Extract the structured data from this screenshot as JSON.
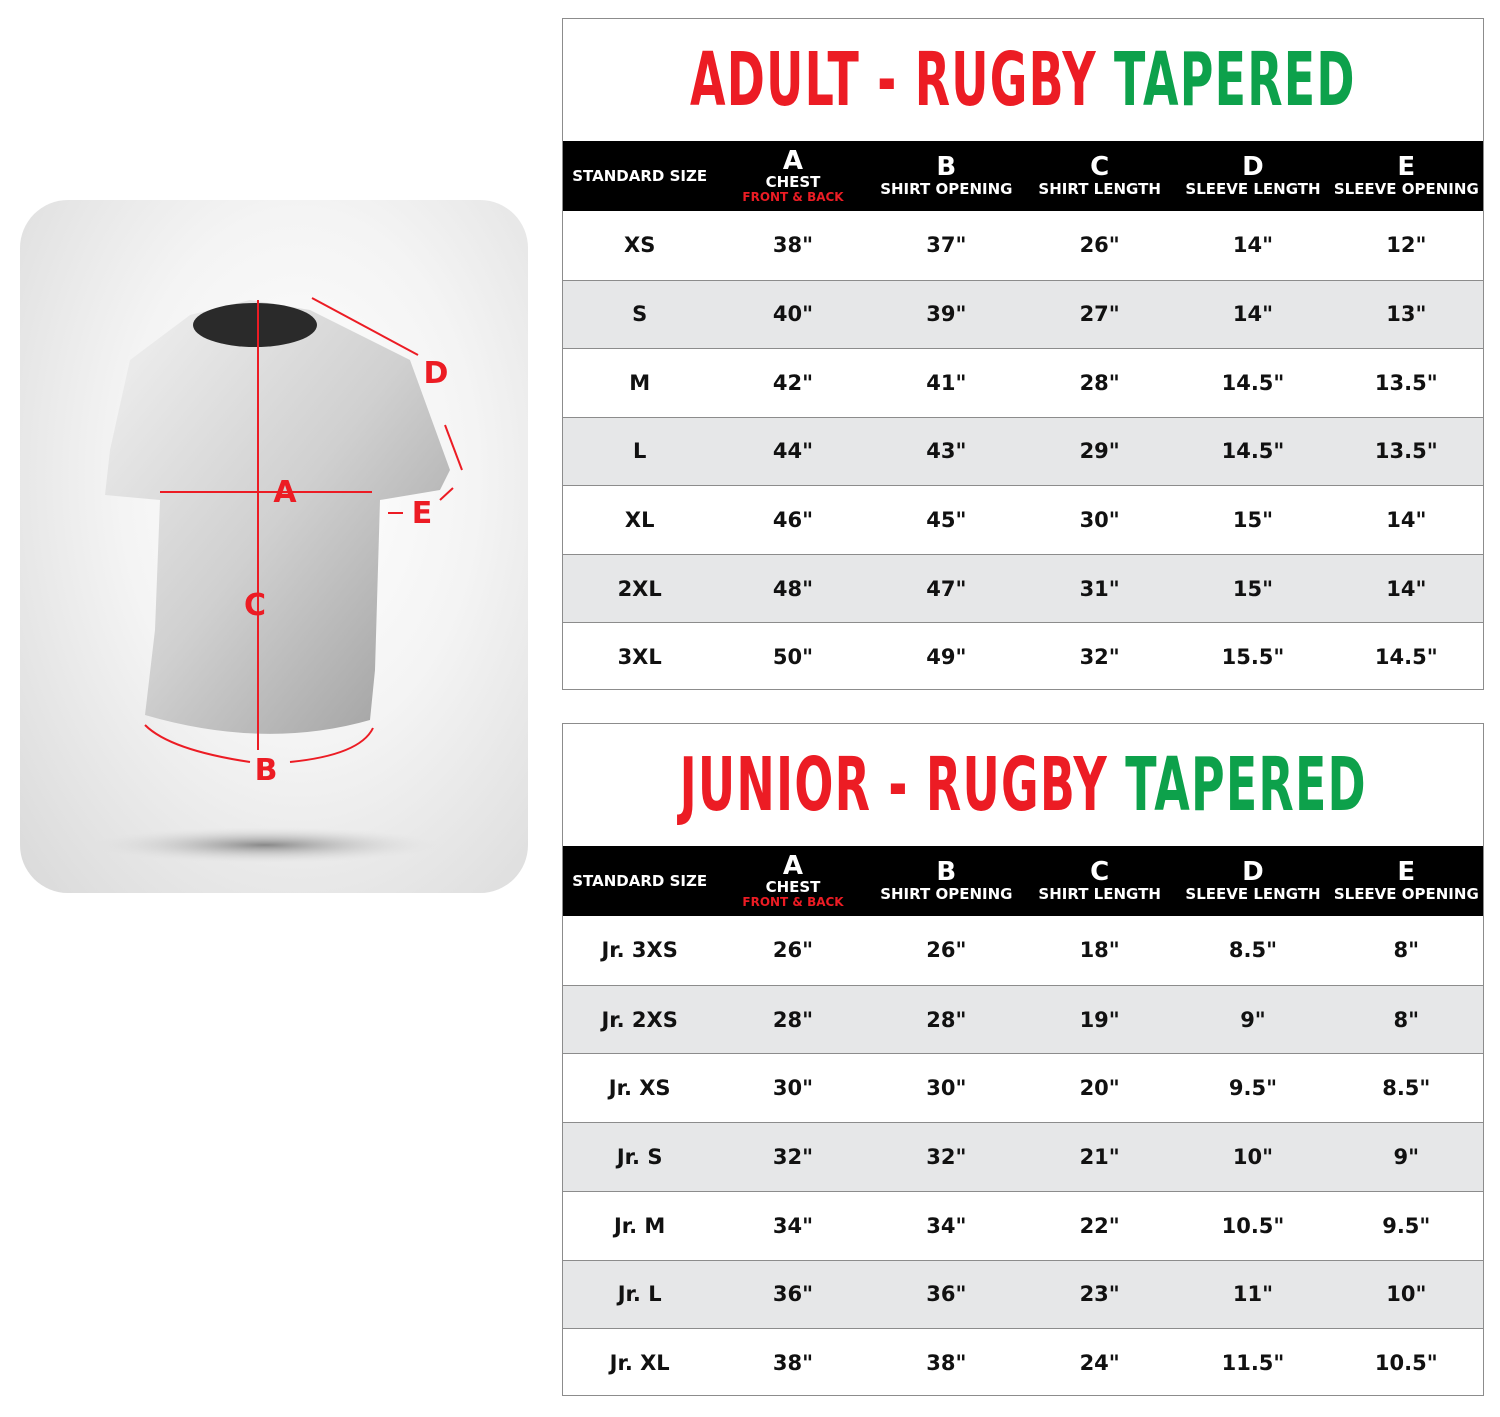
{
  "diagram": {
    "labels": [
      "A",
      "B",
      "C",
      "D",
      "E"
    ],
    "accent_color": "#ec1c24"
  },
  "colors": {
    "title_red": "#ec1c24",
    "title_green": "#0da14b",
    "header_bg": "#000000",
    "alt_row": "#e6e7e8"
  },
  "header": {
    "standard_size": "STANDARD SIZE",
    "columns": [
      {
        "letter": "A",
        "label": "CHEST",
        "sub": "FRONT & BACK"
      },
      {
        "letter": "B",
        "label": "SHIRT OPENING"
      },
      {
        "letter": "C",
        "label": "SHIRT LENGTH"
      },
      {
        "letter": "D",
        "label": "SLEEVE LENGTH"
      },
      {
        "letter": "E",
        "label": "SLEEVE OPENING"
      }
    ]
  },
  "adult": {
    "title_red": "ADULT - RUGBY",
    "title_green": "TAPERED",
    "rows": [
      [
        "XS",
        "38\"",
        "37\"",
        "26\"",
        "14\"",
        "12\""
      ],
      [
        "S",
        "40\"",
        "39\"",
        "27\"",
        "14\"",
        "13\""
      ],
      [
        "M",
        "42\"",
        "41\"",
        "28\"",
        "14.5\"",
        "13.5\""
      ],
      [
        "L",
        "44\"",
        "43\"",
        "29\"",
        "14.5\"",
        "13.5\""
      ],
      [
        "XL",
        "46\"",
        "45\"",
        "30\"",
        "15\"",
        "14\""
      ],
      [
        "2XL",
        "48\"",
        "47\"",
        "31\"",
        "15\"",
        "14\""
      ],
      [
        "3XL",
        "50\"",
        "49\"",
        "32\"",
        "15.5\"",
        "14.5\""
      ]
    ]
  },
  "junior": {
    "title_red": "JUNIOR - RUGBY",
    "title_green": "TAPERED",
    "rows": [
      [
        "Jr. 3XS",
        "26\"",
        "26\"",
        "18\"",
        "8.5\"",
        "8\""
      ],
      [
        "Jr. 2XS",
        "28\"",
        "28\"",
        "19\"",
        "9\"",
        "8\""
      ],
      [
        "Jr. XS",
        "30\"",
        "30\"",
        "20\"",
        "9.5\"",
        "8.5\""
      ],
      [
        "Jr. S",
        "32\"",
        "32\"",
        "21\"",
        "10\"",
        "9\""
      ],
      [
        "Jr. M",
        "34\"",
        "34\"",
        "22\"",
        "10.5\"",
        "9.5\""
      ],
      [
        "Jr. L",
        "36\"",
        "36\"",
        "23\"",
        "11\"",
        "10\""
      ],
      [
        "Jr. XL",
        "38\"",
        "38\"",
        "24\"",
        "11.5\"",
        "10.5\""
      ]
    ]
  }
}
